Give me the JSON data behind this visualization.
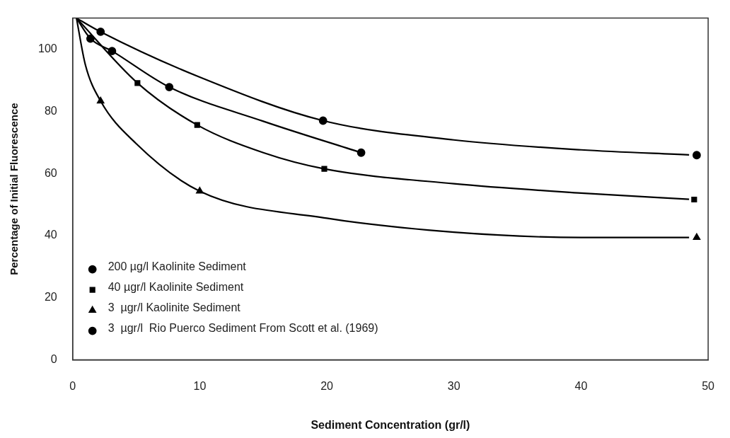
{
  "chart_data": {
    "type": "scatter",
    "xlabel": "Sediment Concentration (gr/l)",
    "ylabel": "Percentage of Initial Fluorescence",
    "xlim": [
      0,
      50
    ],
    "xticks": [
      0,
      10,
      20,
      30,
      40,
      50
    ],
    "ylim": [
      0,
      110
    ],
    "yticks": [
      0,
      20,
      40,
      60,
      80,
      100
    ],
    "grid": false,
    "legend": "bottom left",
    "series": [
      {
        "name": "200 µg/l Kaolinite Sediment",
        "color": "#000000",
        "marker": "circle",
        "x": [
          2.2,
          19.7,
          49.1
        ],
        "values": [
          105.6,
          77.0,
          65.9
        ]
      },
      {
        "name": "40 µgr/l Kaolinite Sediment",
        "color": "#000000",
        "marker": "square",
        "x": [
          5.1,
          9.8,
          19.8,
          48.9
        ],
        "values": [
          89.1,
          75.6,
          61.5,
          51.6
        ]
      },
      {
        "name": "3  µgr/l Kaolinite Sediment",
        "color": "#000000",
        "marker": "triangle",
        "x": [
          2.2,
          10.0,
          49.1
        ],
        "values": [
          83.3,
          54.3,
          39.4
        ]
      },
      {
        "name": "3  µgr/l  Rio Puerco Sediment From Scott et al. (1969)",
        "color": "#000000",
        "marker": "circle",
        "x": [
          1.4,
          3.1,
          7.6,
          22.7
        ],
        "values": [
          103.4,
          99.4,
          87.8,
          66.7
        ]
      },
      {
        "type": "line",
        "color": "#000000",
        "marker": "none",
        "x": [
          0.3,
          2.2,
          10,
          19.7,
          30,
          40,
          48.5
        ],
        "values": [
          110,
          105.6,
          91,
          77.0,
          70.8,
          67.6,
          66
        ]
      },
      {
        "type": "line",
        "color": "#000000",
        "marker": "none",
        "x": [
          0.3,
          5.1,
          9.8,
          15,
          19.8,
          30,
          40,
          48.5
        ],
        "values": [
          110,
          89.1,
          75.6,
          66.7,
          61.5,
          56.7,
          53.7,
          51.7
        ]
      },
      {
        "type": "line",
        "color": "#000000",
        "marker": "none",
        "x": [
          0.3,
          1.0,
          2.2,
          5,
          10.0,
          20,
          30,
          40,
          48.5
        ],
        "values": [
          110,
          95,
          83.3,
          69.6,
          54.3,
          45.6,
          41.1,
          39.4,
          39.4
        ]
      },
      {
        "type": "line",
        "color": "#000000",
        "marker": "none",
        "x": [
          0.3,
          1.4,
          3.1,
          7.6,
          15,
          22.7
        ],
        "values": [
          110,
          103.4,
          99.4,
          87.8,
          76.8,
          66.7
        ]
      }
    ]
  }
}
